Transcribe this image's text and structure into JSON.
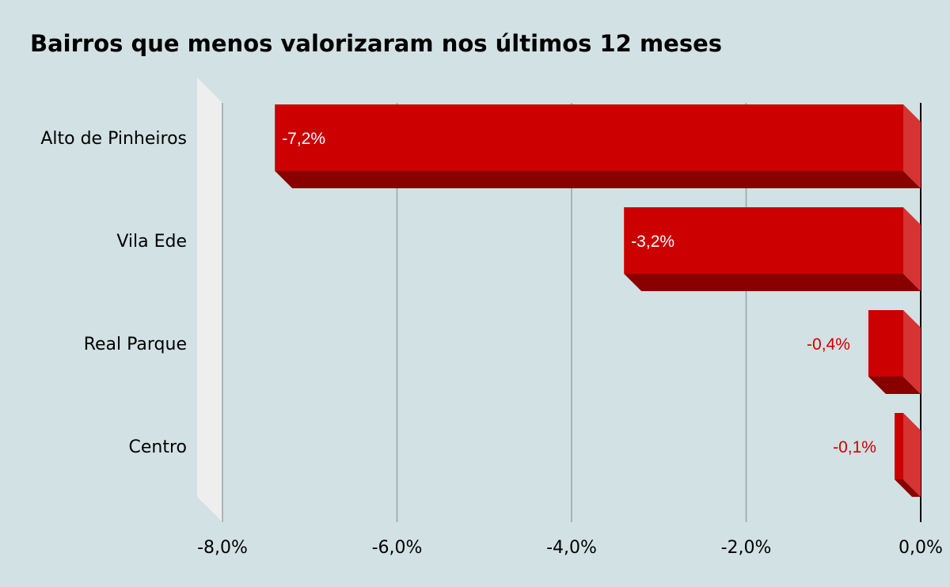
{
  "chart_data": {
    "type": "bar",
    "orientation": "horizontal",
    "style": "3d",
    "title": "Bairros que menos valorizaram nos últimos 12 meses",
    "categories": [
      "Alto de Pinheiros",
      "Vila Ede",
      "Real Parque",
      "Centro"
    ],
    "values": [
      -7.2,
      -3.2,
      -0.4,
      -0.1
    ],
    "data_labels": [
      "-7,2%",
      "-3,2%",
      "-0,4%",
      "-0,1%"
    ],
    "xlim": [
      -8,
      0
    ],
    "xticks": [
      -8,
      -6,
      -4,
      -2,
      0
    ],
    "xtick_labels": [
      "-8,0%",
      "-6,0%",
      "-4,0%",
      "-2,0%",
      "0,0%"
    ],
    "grid": "vertical",
    "colors": {
      "background": "#d2e1e3",
      "bar_front": "#cc0000",
      "bar_bottom": "#880000",
      "bar_side": "#d63333",
      "back_wall": "#eeeeee",
      "gridline": "#9aa5a5",
      "inside_label": "#ffffff",
      "outside_label": "#cc0000"
    }
  }
}
